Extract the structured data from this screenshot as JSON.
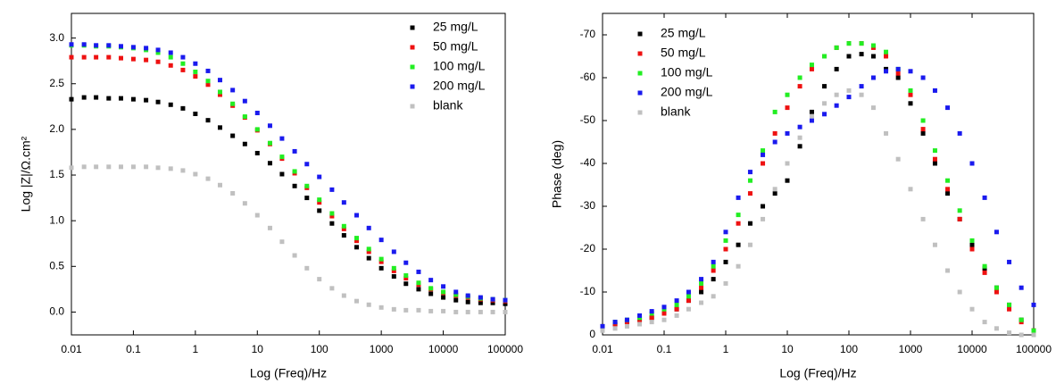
{
  "chart_data": [
    {
      "type": "scatter",
      "x_label": "Log (Freq)/Hz",
      "y_label": "Log |Z|/Ω.cm²",
      "log_x": true,
      "legend_position": "upper right",
      "x": [
        0.01,
        0.016,
        0.025,
        0.04,
        0.063,
        0.1,
        0.16,
        0.25,
        0.4,
        0.63,
        1,
        1.6,
        2.5,
        4,
        6.3,
        10,
        16,
        25,
        40,
        63,
        100,
        160,
        250,
        400,
        630,
        1000,
        1600,
        2500,
        4000,
        6300,
        10000,
        16000,
        25000,
        40000,
        63000,
        100000
      ],
      "xlim": [
        0.01,
        100000
      ],
      "xticks": [
        0.01,
        0.1,
        1,
        10,
        100,
        1000,
        10000,
        100000
      ],
      "ylim": [
        -0.25,
        3.27
      ],
      "yticks": [
        {
          "value": 0,
          "label": "0.0"
        },
        0.5,
        {
          "value": 1,
          "label": "1.0"
        },
        1.5,
        {
          "value": 2,
          "label": "2.0"
        },
        2.5,
        {
          "value": 3,
          "label": "3.0"
        }
      ],
      "series": [
        {
          "name": "25 mg/L",
          "color": "#000000",
          "values": [
            2.33,
            2.35,
            2.35,
            2.34,
            2.34,
            2.33,
            2.32,
            2.3,
            2.27,
            2.23,
            2.17,
            2.1,
            2.02,
            1.93,
            1.84,
            1.74,
            1.63,
            1.51,
            1.38,
            1.25,
            1.11,
            0.97,
            0.84,
            0.71,
            0.59,
            0.48,
            0.39,
            0.31,
            0.25,
            0.2,
            0.16,
            0.13,
            0.11,
            0.1,
            0.1,
            0.09
          ]
        },
        {
          "name": "50 mg/L",
          "color": "#ee1111",
          "values": [
            2.79,
            2.79,
            2.79,
            2.79,
            2.78,
            2.77,
            2.76,
            2.74,
            2.7,
            2.65,
            2.58,
            2.49,
            2.38,
            2.26,
            2.13,
            1.99,
            1.84,
            1.68,
            1.52,
            1.36,
            1.2,
            1.05,
            0.91,
            0.78,
            0.66,
            0.55,
            0.45,
            0.37,
            0.3,
            0.25,
            0.21,
            0.18,
            0.16,
            0.14,
            0.13,
            0.12
          ]
        },
        {
          "name": "100 mg/L",
          "color": "#22ee22",
          "values": [
            2.92,
            2.92,
            2.91,
            2.91,
            2.9,
            2.89,
            2.87,
            2.84,
            2.79,
            2.72,
            2.63,
            2.53,
            2.41,
            2.28,
            2.14,
            2.0,
            1.85,
            1.7,
            1.54,
            1.38,
            1.23,
            1.08,
            0.94,
            0.81,
            0.69,
            0.58,
            0.48,
            0.4,
            0.32,
            0.26,
            0.22,
            0.19,
            0.17,
            0.15,
            0.14,
            0.13
          ]
        },
        {
          "name": "200 mg/L",
          "color": "#1a1aee",
          "values": [
            2.93,
            2.93,
            2.92,
            2.92,
            2.91,
            2.9,
            2.89,
            2.87,
            2.84,
            2.79,
            2.72,
            2.64,
            2.54,
            2.43,
            2.31,
            2.18,
            2.04,
            1.9,
            1.76,
            1.62,
            1.48,
            1.34,
            1.2,
            1.06,
            0.92,
            0.79,
            0.66,
            0.54,
            0.44,
            0.35,
            0.28,
            0.22,
            0.18,
            0.16,
            0.14,
            0.13
          ]
        },
        {
          "name": "blank",
          "color": "#c0c0c0",
          "values": [
            1.58,
            1.59,
            1.59,
            1.59,
            1.59,
            1.59,
            1.59,
            1.58,
            1.57,
            1.55,
            1.51,
            1.46,
            1.39,
            1.3,
            1.19,
            1.06,
            0.92,
            0.77,
            0.62,
            0.48,
            0.36,
            0.26,
            0.18,
            0.12,
            0.08,
            0.05,
            0.03,
            0.02,
            0.02,
            0.01,
            0.01,
            0.0,
            0.0,
            0.0,
            0.0,
            0.0
          ]
        }
      ]
    },
    {
      "type": "scatter",
      "x_label": "Log (Freq)/Hz",
      "y_label": "Phase (deg)",
      "log_x": true,
      "legend_position": "upper left",
      "top_ticks": true,
      "x": [
        0.01,
        0.016,
        0.025,
        0.04,
        0.063,
        0.1,
        0.16,
        0.25,
        0.4,
        0.63,
        1,
        1.6,
        2.5,
        4,
        6.3,
        10,
        16,
        25,
        40,
        63,
        100,
        160,
        250,
        400,
        630,
        1000,
        1600,
        2500,
        4000,
        6300,
        10000,
        16000,
        25000,
        40000,
        63000,
        100000
      ],
      "xlim": [
        0.01,
        100000
      ],
      "xticks": [
        0.01,
        0.1,
        1,
        10,
        100,
        1000,
        10000,
        100000
      ],
      "ylim": [
        0,
        -75
      ],
      "yticks": [
        0,
        -10,
        -20,
        -30,
        -40,
        -50,
        -60,
        -70
      ],
      "series": [
        {
          "name": "25 mg/L",
          "color": "#000000",
          "values": [
            -2,
            -2.5,
            -3,
            -3.5,
            -4,
            -5,
            -6,
            -8,
            -10,
            -13,
            -17,
            -21,
            -26,
            -30,
            -33,
            -36,
            -44,
            -52,
            -58,
            -62,
            -65,
            -65.5,
            -65,
            -62,
            -60,
            -54,
            -47,
            -40,
            -33,
            -27,
            -21,
            -15.5,
            -11,
            -7,
            -3.5,
            -1
          ]
        },
        {
          "name": "50 mg/L",
          "color": "#ee1111",
          "values": [
            -1.5,
            -2.5,
            -3,
            -3.5,
            -4,
            -5,
            -6,
            -8,
            -11,
            -15,
            -20,
            -26,
            -33,
            -40,
            -47,
            -53,
            -58,
            -62,
            -65,
            -67,
            -68,
            -68,
            -67,
            -65,
            -61,
            -56,
            -48,
            -41,
            -34,
            -27,
            -20,
            -14.5,
            -10,
            -6,
            -3,
            -1
          ]
        },
        {
          "name": "100 mg/L",
          "color": "#22ee22",
          "values": [
            -1.5,
            -3,
            -3.5,
            -4,
            -5,
            -6,
            -7,
            -9,
            -12,
            -16,
            -22,
            -28,
            -36,
            -43,
            -52,
            -56,
            -60,
            -63,
            -65,
            -67,
            -68,
            -68,
            -67.5,
            -66,
            -62,
            -57,
            -50,
            -43,
            -36,
            -29,
            -22,
            -16,
            -11,
            -7,
            -3.5,
            -1
          ]
        },
        {
          "name": "200 mg/L",
          "color": "#1a1aee",
          "values": [
            -2,
            -3,
            -3.5,
            -4.5,
            -5.5,
            -6.5,
            -8,
            -10,
            -13,
            -17,
            -24,
            -32,
            -38,
            -42,
            -45,
            -47,
            -48.5,
            -50,
            -51.5,
            -53.5,
            -55.5,
            -58,
            -60,
            -61.5,
            -62,
            -61.5,
            -60,
            -57,
            -53,
            -47,
            -40,
            -32,
            -24,
            -17,
            -11,
            -7
          ]
        },
        {
          "name": "blank",
          "color": "#c0c0c0",
          "values": [
            -1,
            -1.5,
            -2,
            -2.5,
            -3,
            -3.5,
            -4.5,
            -6,
            -7.5,
            -9,
            -12,
            -16,
            -21,
            -27,
            -34,
            -40,
            -46,
            -51,
            -54,
            -56,
            -57,
            -56,
            -53,
            -47,
            -41,
            -34,
            -27,
            -21,
            -15,
            -10,
            -6,
            -3,
            -1.5,
            -0.5,
            0,
            0
          ]
        }
      ]
    }
  ]
}
